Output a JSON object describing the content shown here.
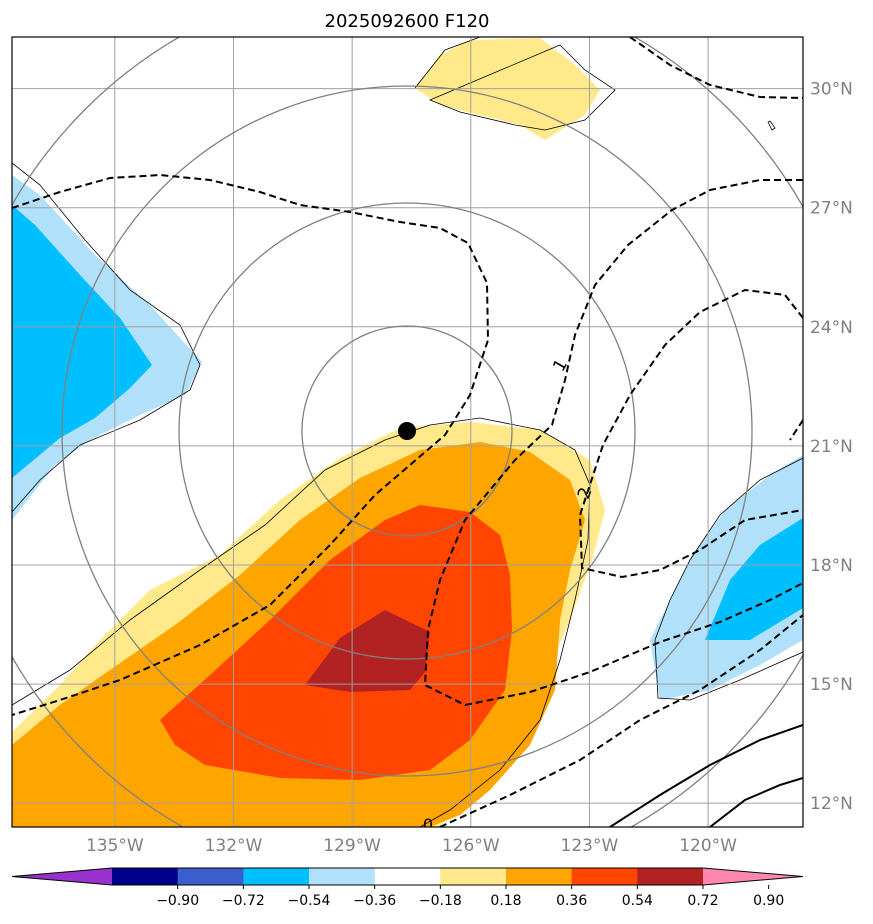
{
  "chart_data": {
    "type": "heatmap",
    "title": "2025092600 F120",
    "x_ticks": [
      "135°W",
      "132°W",
      "129°W",
      "126°W",
      "123°W",
      "120°W"
    ],
    "x_tick_values": [
      -135,
      -132,
      -129,
      -126,
      -123,
      -120
    ],
    "y_ticks": [
      "30°N",
      "27°N",
      "24°N",
      "21°N",
      "18°N",
      "15°N",
      "12°N"
    ],
    "y_tick_values": [
      30,
      27,
      24,
      21,
      18,
      15,
      12
    ],
    "xlim": [
      -137.6,
      -117.6
    ],
    "ylim": [
      11.4,
      31.3
    ],
    "grid": true,
    "colorbar": {
      "levels": [
        -0.9,
        -0.72,
        -0.54,
        -0.36,
        -0.18,
        0.18,
        0.36,
        0.54,
        0.72,
        0.9
      ],
      "labels": [
        "−0.90",
        "−0.72",
        "−0.54",
        "−0.36",
        "−0.18",
        "0.18",
        "0.36",
        "0.54",
        "0.72",
        "0.90"
      ],
      "colors": [
        "#9932cc",
        "#00008b",
        "#3a5fcd",
        "#00bfff",
        "#b0e0fa",
        "#ffffff",
        "#ffe98a",
        "#ffa500",
        "#ff4500",
        "#b22222",
        "#ff88b0"
      ],
      "extend": "both"
    },
    "contour_labels": [
      "1",
      "2",
      "0"
    ],
    "center": {
      "lon": -127.5,
      "lat": 21.3
    }
  }
}
